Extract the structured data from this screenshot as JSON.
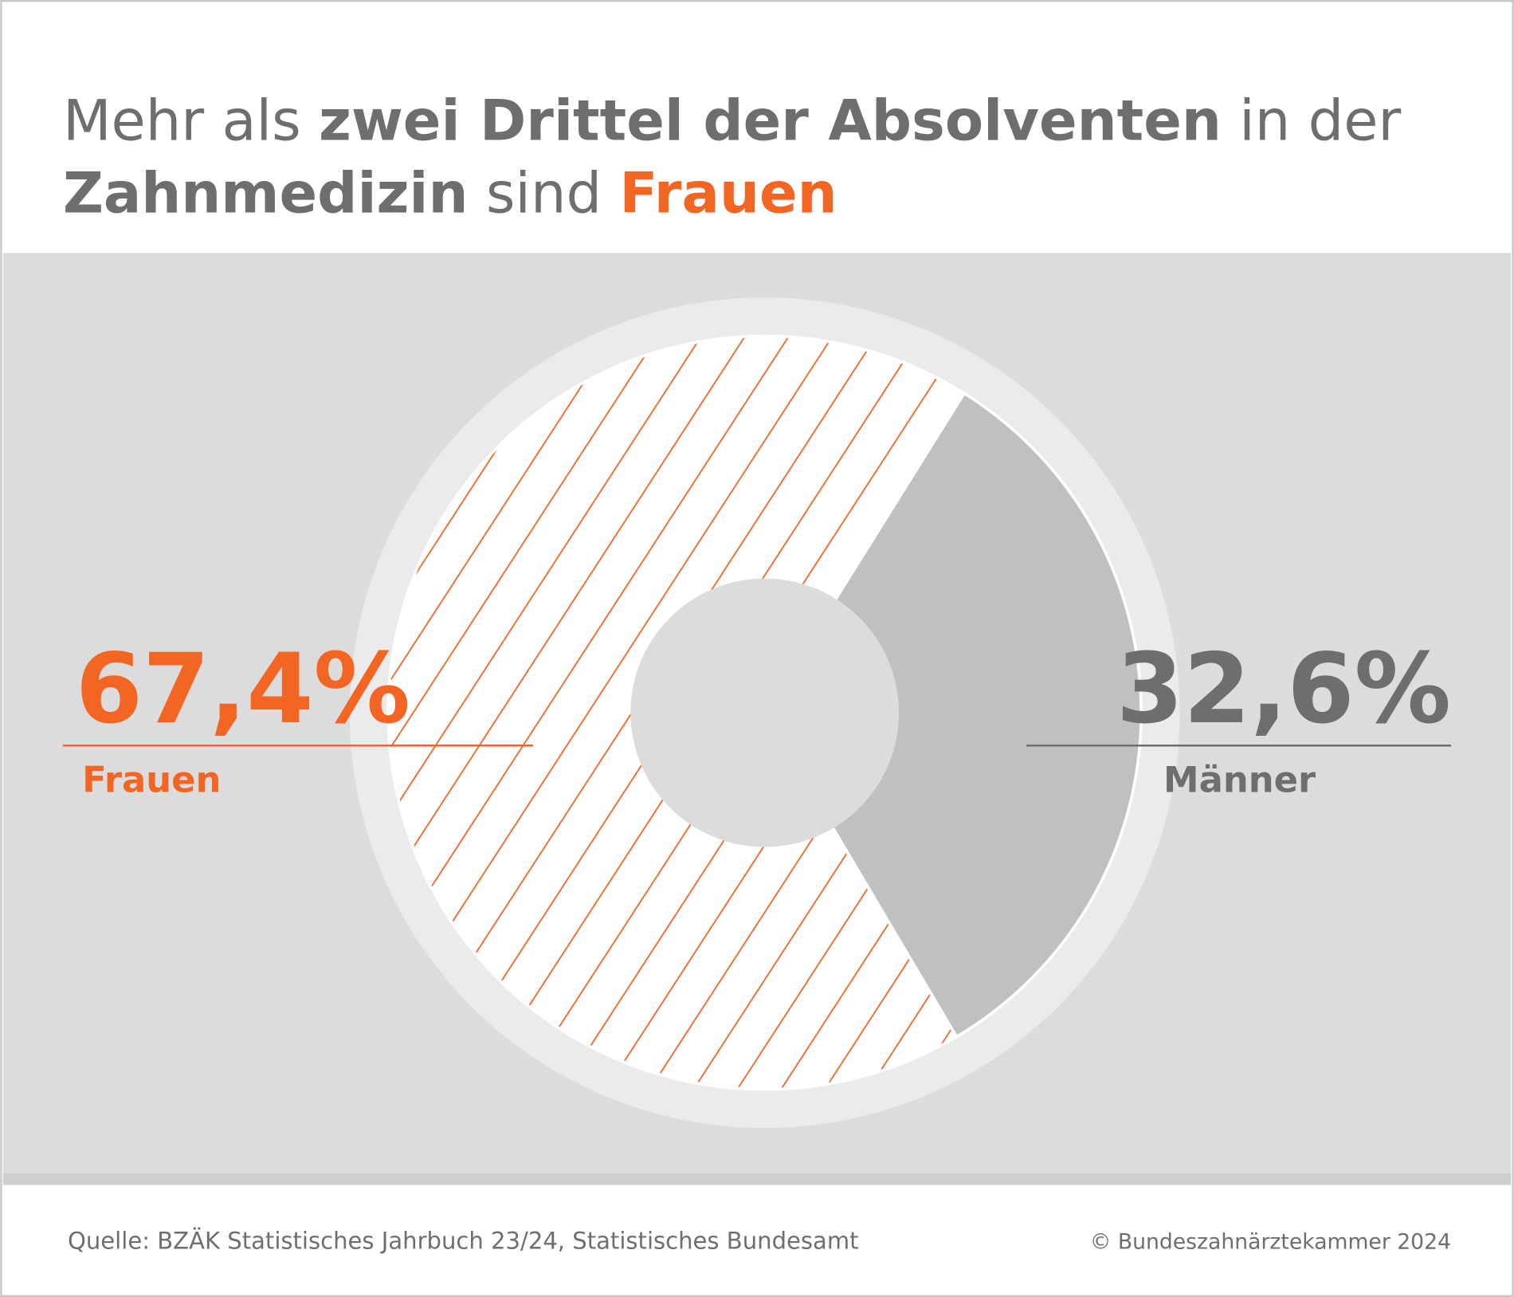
{
  "chart_data": {
    "type": "donut",
    "title_parts": [
      "Mehr als ",
      "zwei Drittel der Absolventen",
      " in der",
      "Zahnmedizin",
      " sind ",
      "Frauen"
    ],
    "categories": [
      "Frauen",
      "Männer"
    ],
    "values": [
      67.4,
      32.6
    ],
    "value_labels": [
      "67,4%",
      "32,6%"
    ],
    "colors": [
      "#f26522",
      "#bfc0c2"
    ],
    "source": "Quelle: BZÄK Statistisches Jahrbuch 23/24, Statistisches Bundesamt",
    "copyright": "© Bundeszahnärztekammer 2024"
  }
}
